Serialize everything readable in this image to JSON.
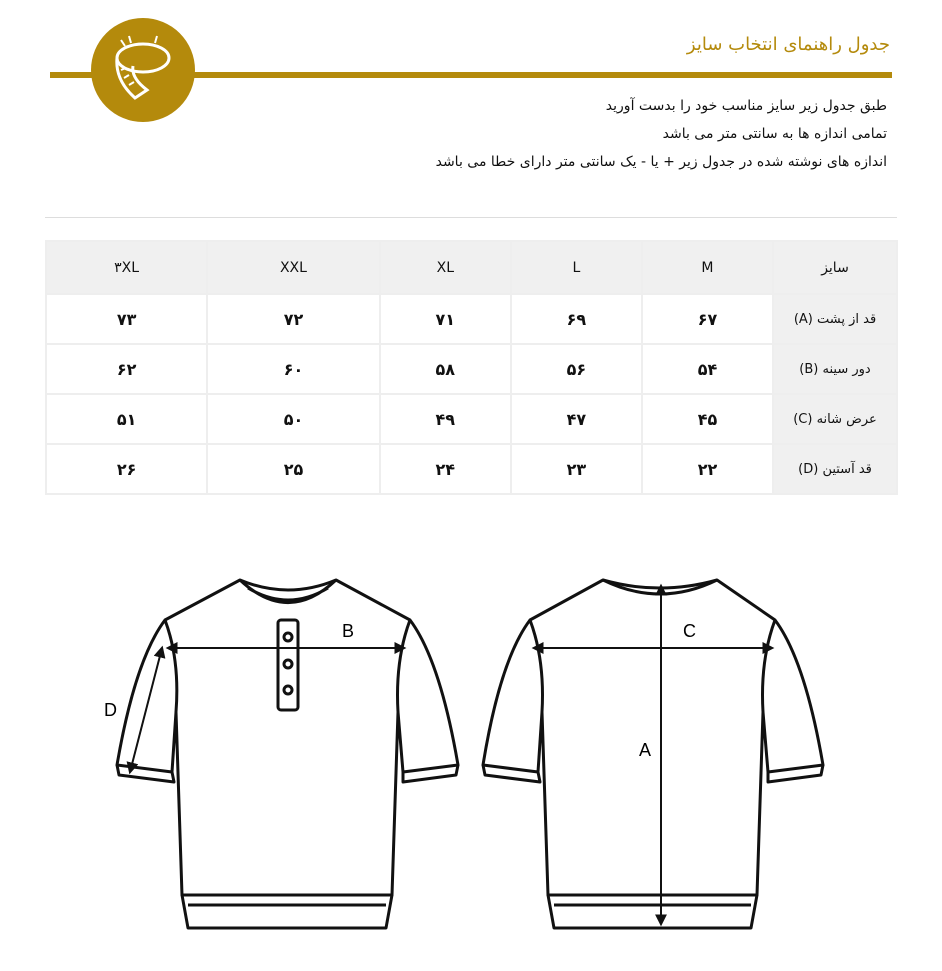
{
  "header": {
    "title": "جدول راهنمای انتخاب سایز",
    "accent": "#b48a0c",
    "badge_icon": "tape-measure-icon"
  },
  "notes": [
    "طبق جدول زیر سایز مناسب خود را بدست آورید",
    "تمامی اندازه ها به سانتی متر می باشد",
    "اندازه های نوشته شده در جدول زیر + یا - یک سانتی متر دارای خطا می باشد"
  ],
  "table": {
    "headers": [
      "سایز",
      "M",
      "L",
      "XL",
      "XXL",
      "۳XL"
    ],
    "rows": [
      {
        "label": "قد از پشت (A)",
        "values": [
          "۶۷",
          "۶۹",
          "۷۱",
          "۷۲",
          "۷۳"
        ]
      },
      {
        "label": "دور سینه (B)",
        "values": [
          "۵۴",
          "۵۶",
          "۵۸",
          "۶۰",
          "۶۲"
        ]
      },
      {
        "label": "عرض شانه (C)",
        "values": [
          "۴۵",
          "۴۷",
          "۴۹",
          "۵۰",
          "۵۱"
        ]
      },
      {
        "label": "قد آستین (D)",
        "values": [
          "۲۲",
          "۲۳",
          "۲۴",
          "۲۵",
          "۲۶"
        ]
      }
    ]
  },
  "diagram": {
    "front_labels": {
      "b": "B",
      "d": "D"
    },
    "back_labels": {
      "c": "C",
      "a": "A"
    }
  }
}
